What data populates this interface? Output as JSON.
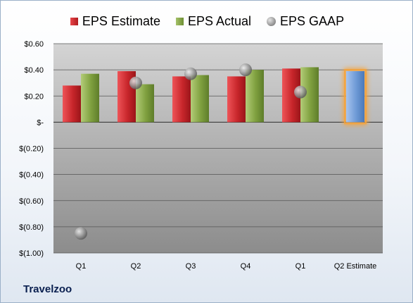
{
  "legend": {
    "estimate": "EPS Estimate",
    "actual": "EPS Actual",
    "gaap": "EPS GAAP"
  },
  "company": "Travelzoo",
  "colors": {
    "estimate": "#c8262b",
    "actual": "#7fa03f",
    "gaap": "#9a9a9a",
    "next_estimate": "#6e9ad6",
    "highlight": "#f5a33a"
  },
  "chart_data": {
    "type": "bar",
    "categories": [
      "Q1",
      "Q2",
      "Q3",
      "Q4",
      "Q1",
      "Q2 Estimate"
    ],
    "y_tick_labels": [
      "$0.60",
      "$0.40",
      "$0.20",
      "$-",
      "$(0.20)",
      "$(0.40)",
      "$(0.60)",
      "$(0.80)",
      "$(1.00)"
    ],
    "y_ticks": [
      0.6,
      0.4,
      0.2,
      0,
      -0.2,
      -0.4,
      -0.6,
      -0.8,
      -1.0
    ],
    "ylim": [
      -1.0,
      0.6
    ],
    "grid": true,
    "legend_position": "top",
    "series": [
      {
        "name": "EPS Estimate",
        "type": "bar",
        "values": [
          0.28,
          0.39,
          0.35,
          0.35,
          0.41,
          null
        ]
      },
      {
        "name": "EPS Actual",
        "type": "bar",
        "values": [
          0.37,
          0.29,
          0.36,
          0.4,
          0.42,
          null
        ]
      },
      {
        "name": "EPS GAAP",
        "type": "scatter",
        "values": [
          -0.85,
          0.3,
          0.37,
          0.4,
          0.23,
          null
        ]
      }
    ],
    "next_quarter_estimate": {
      "category": "Q2 Estimate",
      "value": 0.39
    }
  }
}
